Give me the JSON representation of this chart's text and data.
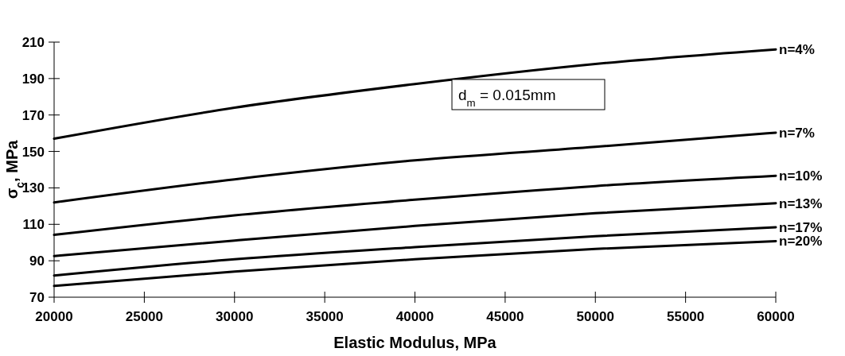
{
  "chart_data": {
    "type": "line",
    "xlabel": "Elastic Modulus, MPa",
    "ylabel": "σ$_{c}$, MPa",
    "x": [
      20000,
      30000,
      40000,
      50000,
      60000
    ],
    "series": [
      {
        "name": "n=4%",
        "color": "#000000",
        "values": [
          157,
          174,
          187,
          198,
          206
        ]
      },
      {
        "name": "n=7%",
        "color": "#000000",
        "values": [
          122,
          134.7,
          145.1,
          152.5,
          160.3
        ]
      },
      {
        "name": "n=10%",
        "color": "#000000",
        "values": [
          104.2,
          114.9,
          123.5,
          131,
          136.6
        ]
      },
      {
        "name": "n=13%",
        "color": "#000000",
        "values": [
          92.6,
          101.1,
          109.1,
          116.1,
          121.6
        ]
      },
      {
        "name": "n=17%",
        "color": "#000000",
        "values": [
          81.9,
          90.8,
          97.5,
          103.5,
          108.4
        ]
      },
      {
        "name": "n=20%",
        "color": "#000000",
        "values": [
          76.2,
          84.1,
          90.8,
          96.5,
          100.8
        ]
      }
    ],
    "xlim": [
      20000,
      60000
    ],
    "xticks": [
      20000,
      25000,
      30000,
      35000,
      40000,
      45000,
      50000,
      55000,
      60000
    ],
    "ylim": [
      70,
      210
    ],
    "yticks": [
      70,
      90,
      110,
      130,
      150,
      170,
      190,
      210
    ],
    "grid": false,
    "marker": "none",
    "line_style": "solid",
    "annotations": [
      "d$_{m}$ = 0.015mm"
    ]
  }
}
